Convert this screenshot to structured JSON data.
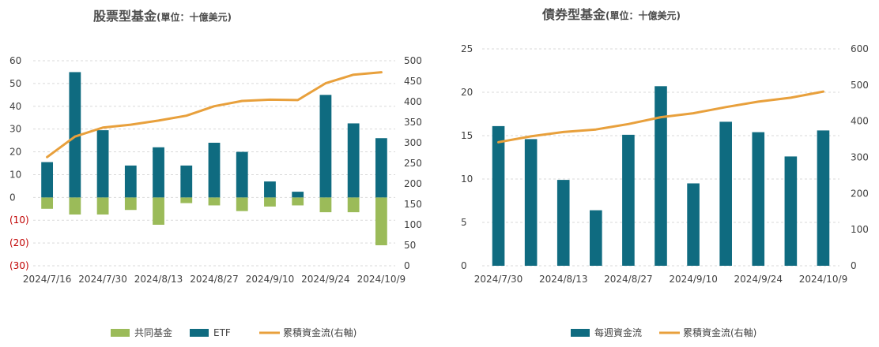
{
  "chart_data": [
    {
      "type": "bar",
      "title": "股票型基金",
      "subtitle": "(單位：十億美元)",
      "categories": [
        "2024/7/16",
        "2024/7/23",
        "2024/7/30",
        "2024/8/6",
        "2024/8/13",
        "2024/8/20",
        "2024/8/27",
        "2024/9/3",
        "2024/9/10",
        "2024/9/17",
        "2024/9/24",
        "2024/10/1",
        "2024/10/9"
      ],
      "x_tick_labels": [
        "2024/7/16",
        "2024/7/30",
        "2024/8/13",
        "2024/8/27",
        "2024/9/10",
        "2024/9/24",
        "2024/10/9"
      ],
      "series": [
        {
          "name": "共同基金",
          "kind": "bar",
          "axis": "left",
          "color": "#9bbb59",
          "values": [
            -5,
            -7.5,
            -7.5,
            -5.5,
            -12,
            -2.5,
            -3.5,
            -6,
            -4,
            -3.5,
            -6.5,
            -6.5,
            -21
          ]
        },
        {
          "name": "ETF",
          "kind": "bar",
          "axis": "left",
          "color": "#0f6b80",
          "values": [
            15.5,
            55,
            29.5,
            14,
            22,
            14,
            24,
            20,
            7,
            2.5,
            45,
            32.5,
            26
          ]
        },
        {
          "name": "累積資金流(右軸)",
          "kind": "line",
          "axis": "right",
          "color": "#e8a03c",
          "values": [
            265,
            315,
            337,
            344,
            354,
            366,
            389,
            402,
            405,
            404,
            445,
            466,
            472
          ]
        }
      ],
      "left_axis": {
        "min": -30,
        "max": 60,
        "ticks": [
          60,
          50,
          40,
          30,
          20,
          10,
          0,
          -10,
          -20,
          -30
        ],
        "tick_labels": [
          "60",
          "50",
          "40",
          "30",
          "20",
          "10",
          "0",
          "(10)",
          "(20)",
          "(30)"
        ]
      },
      "right_axis": {
        "min": 0,
        "max": 500,
        "ticks": [
          500,
          450,
          400,
          350,
          300,
          250,
          200,
          150,
          100,
          50,
          0
        ]
      },
      "legend_position": "bottom",
      "grid": true
    },
    {
      "type": "bar",
      "title": "債券型基金",
      "subtitle": "(單位：十億美元)",
      "categories": [
        "2024/7/30",
        "2024/8/6",
        "2024/8/13",
        "2024/8/20",
        "2024/8/27",
        "2024/9/3",
        "2024/9/10",
        "2024/9/17",
        "2024/9/24",
        "2024/10/1",
        "2024/10/9"
      ],
      "x_tick_labels": [
        "2024/7/30",
        "2024/8/13",
        "2024/8/27",
        "2024/9/10",
        "2024/9/24",
        "2024/10/9"
      ],
      "series": [
        {
          "name": "每週資金流",
          "kind": "bar",
          "axis": "left",
          "color": "#0f6b80",
          "values": [
            16.1,
            14.6,
            9.9,
            6.4,
            15.1,
            20.7,
            9.5,
            16.6,
            15.4,
            12.6,
            15.6
          ]
        },
        {
          "name": "累積資金流(右軸)",
          "kind": "line",
          "axis": "right",
          "color": "#e8a03c",
          "values": [
            342,
            358,
            370,
            377,
            392,
            411,
            422,
            439,
            454,
            465,
            482
          ]
        }
      ],
      "left_axis": {
        "min": 0,
        "max": 25,
        "ticks": [
          25,
          20,
          15,
          10,
          5,
          0
        ],
        "tick_labels": [
          "25",
          "20",
          "15",
          "10",
          "5",
          "0"
        ]
      },
      "right_axis": {
        "min": 0,
        "max": 600,
        "ticks": [
          600,
          500,
          400,
          300,
          200,
          100,
          0
        ]
      },
      "legend_position": "bottom",
      "grid": true
    }
  ]
}
